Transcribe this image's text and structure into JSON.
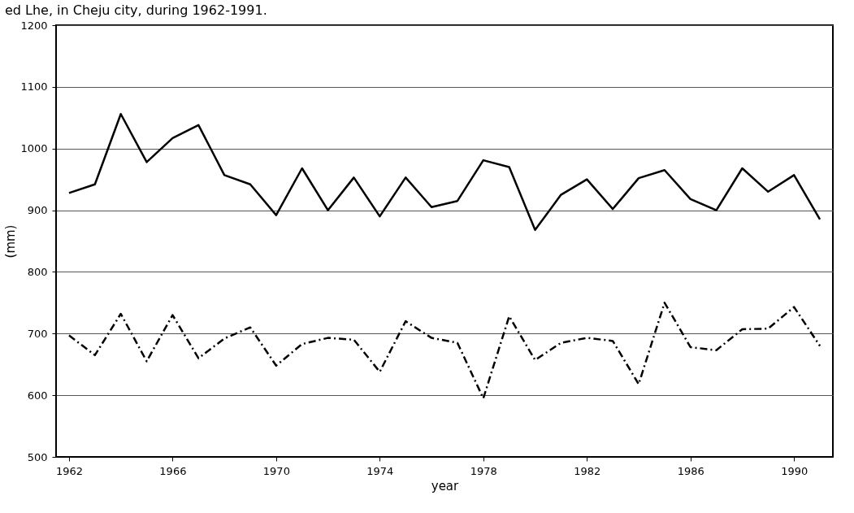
{
  "chart_data": {
    "type": "line",
    "xlabel": "year",
    "ylabel": "(mm)",
    "annotations": [
      "ed Lhe, in Cheju city, during 1962-1991."
    ],
    "x": [
      1962,
      1963,
      1964,
      1965,
      1966,
      1967,
      1968,
      1969,
      1970,
      1971,
      1972,
      1973,
      1974,
      1975,
      1976,
      1977,
      1978,
      1979,
      1980,
      1981,
      1982,
      1983,
      1984,
      1985,
      1986,
      1987,
      1988,
      1989,
      1990,
      1991
    ],
    "series": [
      {
        "color": "#000000",
        "line_style": "solid",
        "values": [
          928,
          942,
          1056,
          978,
          1017,
          1038,
          957,
          942,
          892,
          968,
          900,
          953,
          890,
          953,
          905,
          915,
          981,
          970,
          868,
          925,
          950,
          902,
          952,
          965,
          918,
          900,
          968,
          930,
          957,
          885
        ]
      },
      {
        "color": "#000000",
        "line_style": "dashed",
        "values": [
          697,
          665,
          732,
          655,
          730,
          660,
          692,
          710,
          648,
          683,
          693,
          690,
          638,
          720,
          693,
          685,
          595,
          728,
          657,
          685,
          693,
          688,
          618,
          750,
          678,
          673,
          707,
          708,
          743,
          680
        ]
      }
    ],
    "xlim": [
      1961.5,
      1991.5
    ],
    "xticks": [
      1962,
      1966,
      1970,
      1974,
      1978,
      1982,
      1986,
      1990
    ],
    "ylim": [
      500,
      1200
    ],
    "yticks": [
      500,
      600,
      700,
      800,
      900,
      1000,
      1100,
      1200
    ],
    "grid": "y",
    "legend": false
  }
}
